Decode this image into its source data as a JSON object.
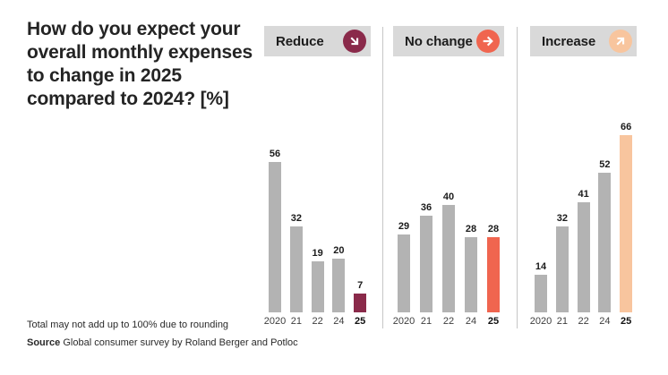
{
  "title": "How do you expect your overall monthly expenses to change in 2025 compared to 2024? [%]",
  "footnotes": {
    "rounding": "Total may not add up to 100% due to rounding",
    "source_label": "Source",
    "source_text": "Global consumer survey by Roland Berger and Potloc"
  },
  "colors": {
    "bar_default": "#b3b3b3",
    "reduce_accent": "#8a2a4a",
    "no_change_accent": "#f0654f",
    "increase_accent": "#f8c59e",
    "panel_header_bg": "#d9d9d9",
    "divider": "#c6c6c6",
    "text_dark": "#242424"
  },
  "chart_data": {
    "type": "bar",
    "categories": [
      "2020",
      "21",
      "22",
      "24",
      "25"
    ],
    "highlight_category": "25",
    "series": [
      {
        "name": "Reduce",
        "values": [
          56,
          32,
          19,
          20,
          7
        ],
        "highlight_color": "#8a2a4a",
        "icon": "arrow-down-right-icon"
      },
      {
        "name": "No change",
        "values": [
          29,
          36,
          40,
          28,
          28
        ],
        "highlight_color": "#f0654f",
        "icon": "arrow-right-icon"
      },
      {
        "name": "Increase",
        "values": [
          14,
          32,
          41,
          52,
          66
        ],
        "highlight_color": "#f8c59e",
        "icon": "arrow-up-right-icon"
      }
    ],
    "title": "How do you expect your overall monthly expenses to change in 2025 compared to 2024? [%]",
    "xlabel": "",
    "ylabel": "",
    "ylim": [
      0,
      70
    ],
    "grid": false,
    "legend_position": "panel-headers",
    "value_labels": true
  }
}
